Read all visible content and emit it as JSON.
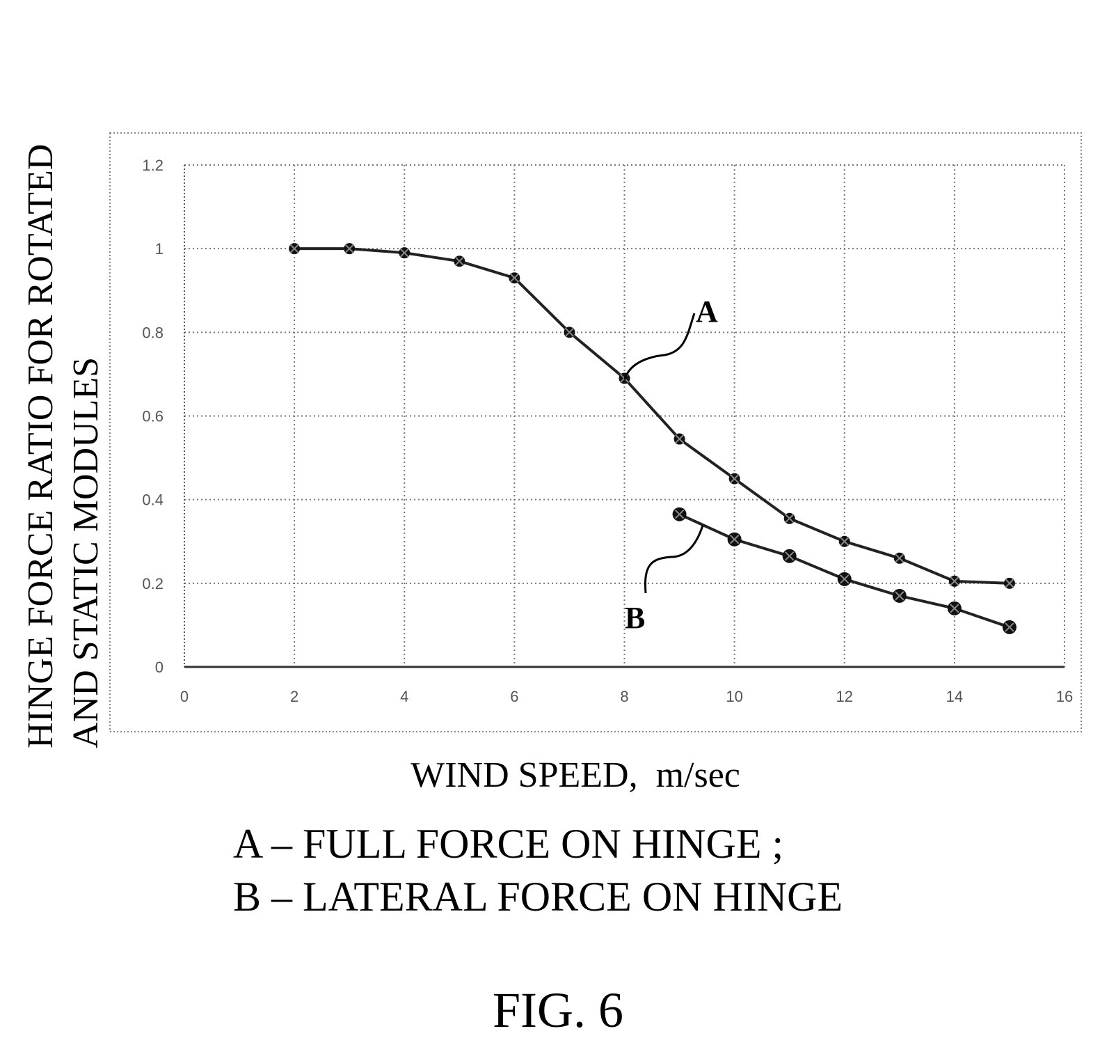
{
  "figure": {
    "title": "FIG. 6"
  },
  "legend": {
    "line_a": "A – FULL FORCE ON HINGE ;",
    "line_b": "B – LATERAL FORCE ON HINGE"
  },
  "chart_data": {
    "type": "line",
    "xlabel": "WIND SPEED,  m/sec",
    "ylabel_lines": [
      "HINGE FORCE RATIO FOR ROTATED",
      "AND STATIC MODULES"
    ],
    "xlim": [
      0,
      16
    ],
    "ylim": [
      0,
      1.2
    ],
    "x_ticks": [
      0,
      2,
      4,
      6,
      8,
      10,
      12,
      14,
      16
    ],
    "y_ticks": [
      0,
      0.2,
      0.4,
      0.6,
      0.8,
      1,
      1.2
    ],
    "x_tick_labels": [
      "0",
      "2",
      "4",
      "6",
      "8",
      "10",
      "12",
      "14",
      "16"
    ],
    "y_tick_labels": [
      "0",
      "0.2",
      "0.4",
      "0.6",
      "0.8",
      "1",
      "1.2"
    ],
    "grid": true,
    "series": [
      {
        "name": "A",
        "x": [
          2,
          3,
          4,
          5,
          6,
          7,
          8,
          9,
          10,
          11,
          12,
          13,
          14,
          15
        ],
        "y": [
          1.0,
          1.0,
          0.99,
          0.97,
          0.93,
          0.8,
          0.69,
          0.545,
          0.45,
          0.355,
          0.3,
          0.26,
          0.205,
          0.2
        ]
      },
      {
        "name": "B",
        "x": [
          9,
          10,
          11,
          12,
          13,
          14,
          15
        ],
        "y": [
          0.365,
          0.305,
          0.265,
          0.21,
          0.17,
          0.14,
          0.095
        ]
      }
    ]
  }
}
